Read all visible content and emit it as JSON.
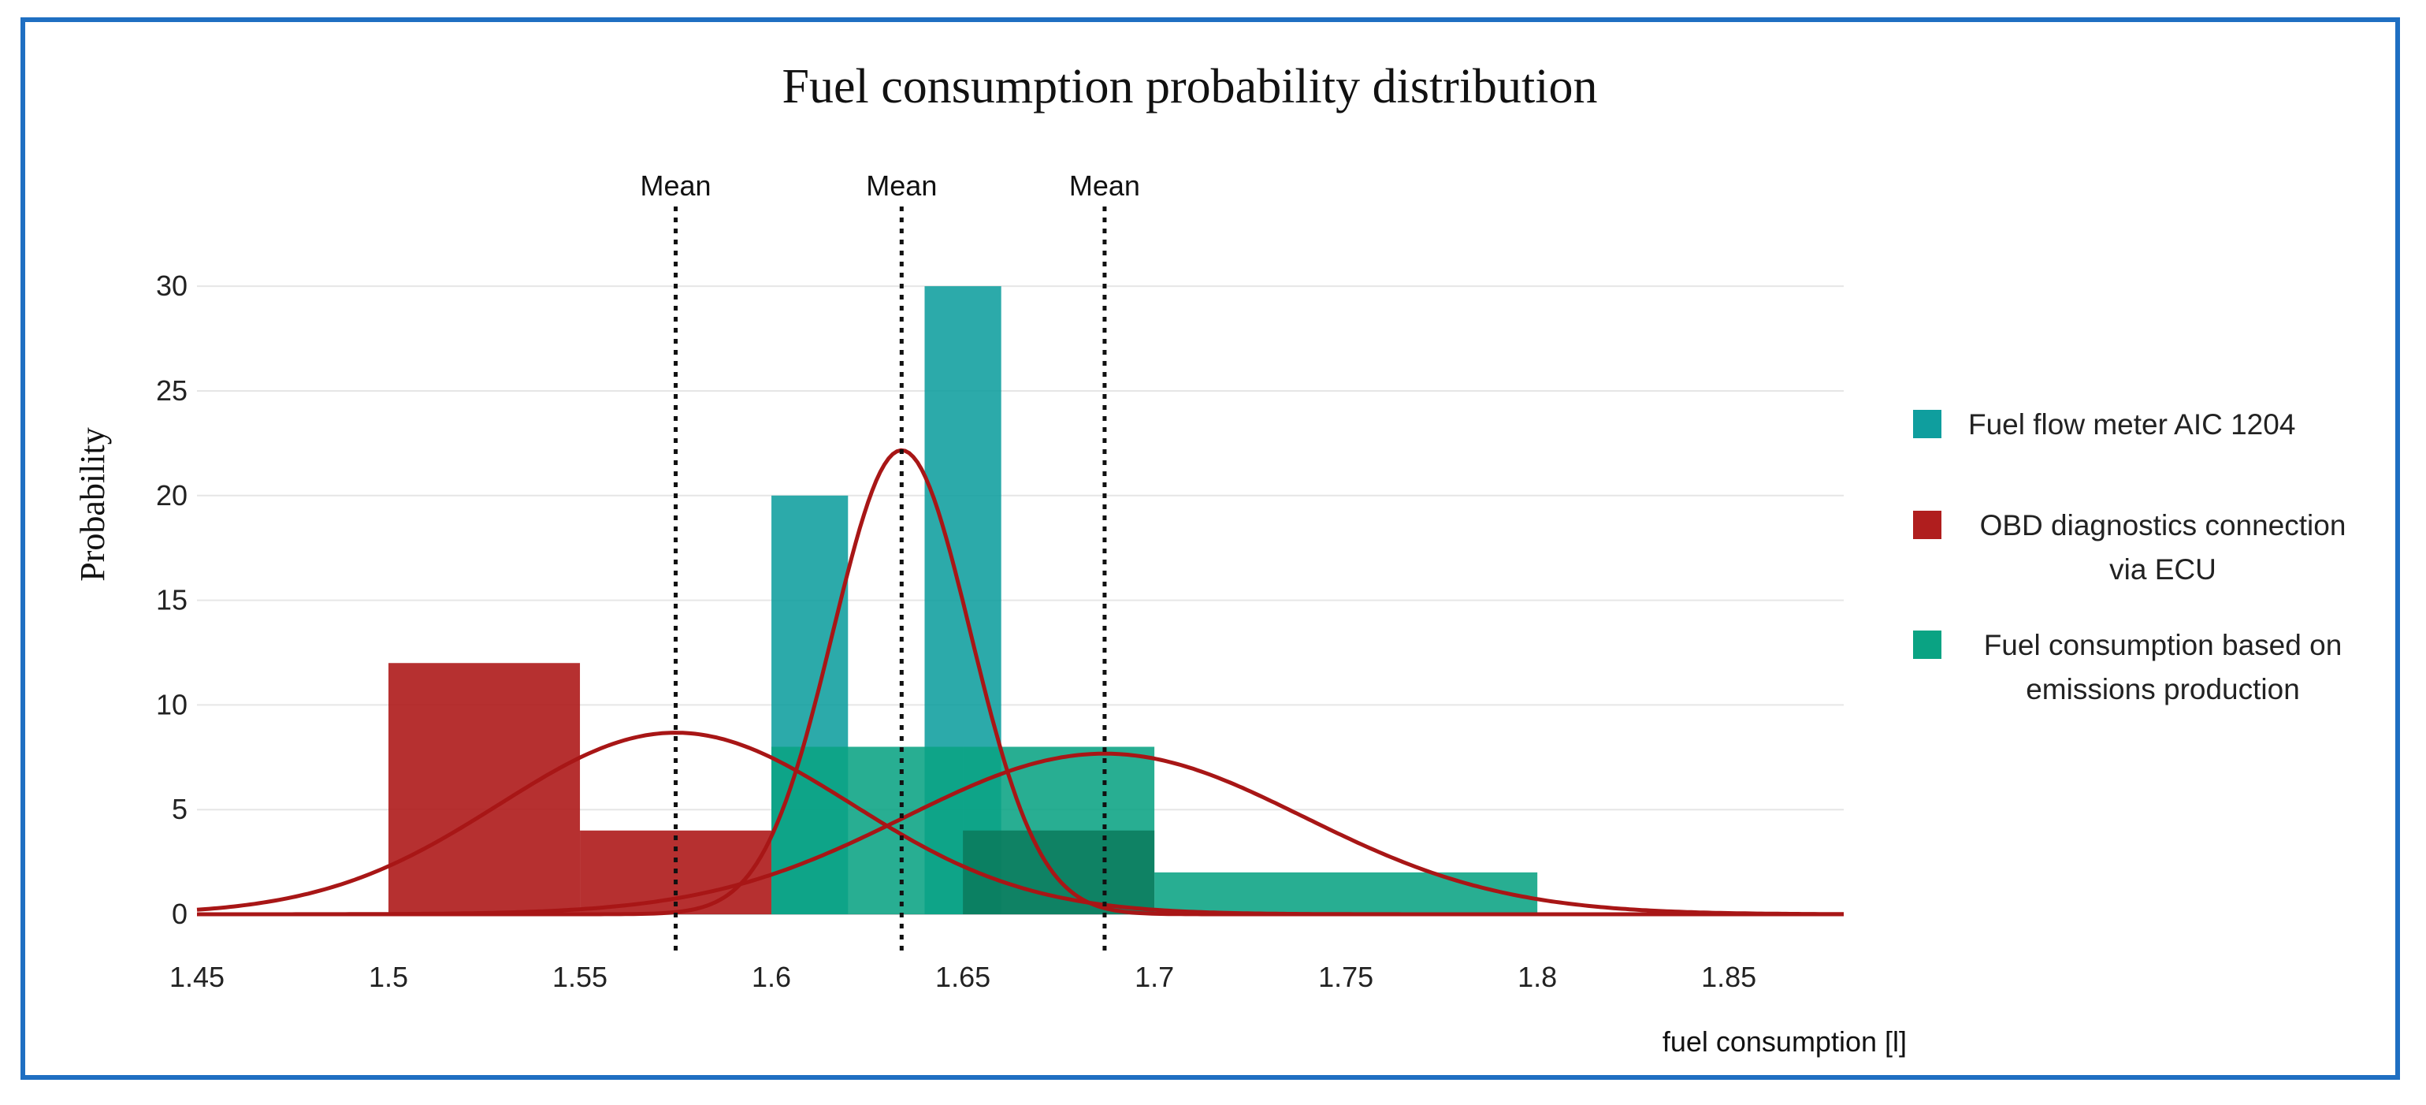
{
  "chart_data": {
    "type": "bar",
    "title": "Fuel consumption probability distribution",
    "xlabel": "fuel consumption [l]",
    "ylabel": "Probability",
    "xlim": [
      1.45,
      1.88
    ],
    "ylim": [
      0,
      32
    ],
    "x_ticks": [
      "1.45",
      "1.5",
      "1.55",
      "1.6",
      "1.65",
      "1.7",
      "1.75",
      "1.8",
      "1.85"
    ],
    "y_ticks": [
      "0",
      "5",
      "10",
      "15",
      "20",
      "25",
      "30"
    ],
    "series": [
      {
        "name": "OBD diagnostics connection via ECU",
        "name_lines": [
          "OBD diagnostics connection",
          "via ECU"
        ],
        "color": "#b01e1e",
        "bins": [
          {
            "x0": 1.5,
            "x1": 1.55,
            "value": 12
          },
          {
            "x0": 1.55,
            "x1": 1.6,
            "value": 4
          }
        ],
        "normal": {
          "mean": 1.575,
          "sd": 0.046
        }
      },
      {
        "name": "Fuel flow meter AIC 1204",
        "name_lines": [
          "Fuel flow meter AIC 1204"
        ],
        "color": "#0f9e9e",
        "bins": [
          {
            "x0": 1.6,
            "x1": 1.62,
            "value": 20
          },
          {
            "x0": 1.62,
            "x1": 1.64,
            "value": 0
          },
          {
            "x0": 1.64,
            "x1": 1.66,
            "value": 30
          }
        ],
        "normal": {
          "mean": 1.634,
          "sd": 0.018
        }
      },
      {
        "name": "Fuel consumption based on emissions production",
        "name_lines": [
          "Fuel consumption based on",
          "emissions production"
        ],
        "color": "#0aa383",
        "bins": [
          {
            "x0": 1.6,
            "x1": 1.65,
            "value": 8
          },
          {
            "x0": 1.65,
            "x1": 1.7,
            "value": 8
          },
          {
            "x0": 1.7,
            "x1": 1.8,
            "value": 2
          }
        ],
        "normal": {
          "mean": 1.687,
          "sd": 0.052
        }
      }
    ],
    "overlay_bins": [
      {
        "x0": 1.65,
        "x1": 1.7,
        "value": 4,
        "color": "#0b7a5c"
      }
    ],
    "mean_lines": [
      {
        "x": 1.575,
        "label": "Mean"
      },
      {
        "x": 1.634,
        "label": "Mean"
      },
      {
        "x": 1.687,
        "label": "Mean"
      }
    ],
    "curve_color": "#a81616",
    "legend_position": "right"
  },
  "legend_order": [
    1,
    0,
    2
  ]
}
